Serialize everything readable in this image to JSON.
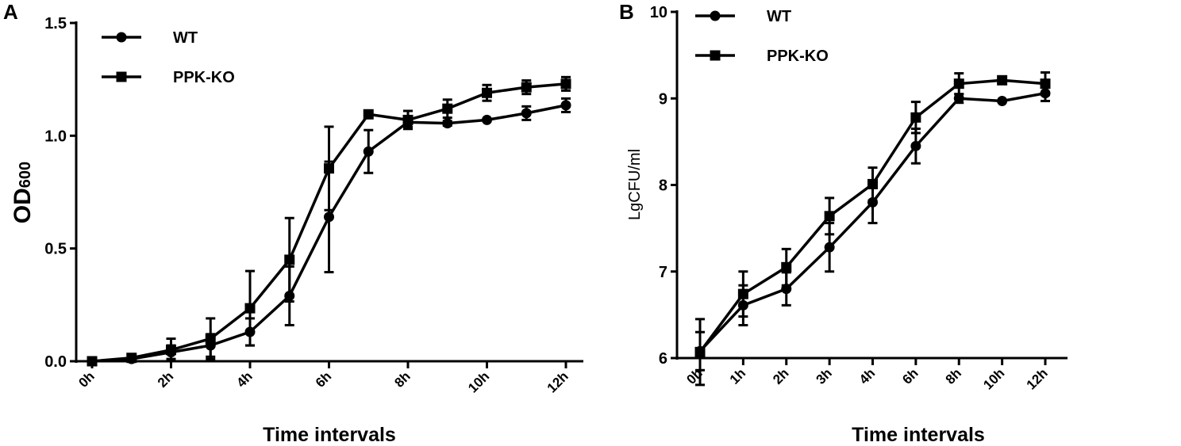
{
  "chart_data": [
    {
      "type": "line",
      "panel_label": "A",
      "title": "",
      "xlabel": "Time intervals",
      "ylabel": "OD",
      "ylabel_sub": "600",
      "ylim": [
        0,
        1.5
      ],
      "yticks": [
        "0.0",
        "0.5",
        "1.0",
        "1.5"
      ],
      "ytick_values": [
        0,
        0.5,
        1.0,
        1.5
      ],
      "x": [
        0,
        1,
        2,
        3,
        4,
        5,
        6,
        7,
        8,
        9,
        10,
        11,
        12
      ],
      "xticks": [
        "0h",
        "2h",
        "4h",
        "6h",
        "8h",
        "10h",
        "12h"
      ],
      "xtick_values": [
        0,
        2,
        4,
        6,
        8,
        10,
        12
      ],
      "legend_position": "top-left",
      "series": [
        {
          "name": "WT",
          "marker": "circle",
          "values": [
            0,
            0.01,
            0.04,
            0.07,
            0.13,
            0.29,
            0.64,
            0.93,
            1.06,
            1.055,
            1.07,
            1.1,
            1.135
          ],
          "errors": [
            0,
            0.005,
            0.03,
            0.05,
            0.06,
            0.13,
            0.245,
            0.095,
            0.02,
            0.01,
            0,
            0.03,
            0.03
          ]
        },
        {
          "name": "PPK-KO",
          "marker": "square",
          "values": [
            0,
            0.015,
            0.05,
            0.1,
            0.235,
            0.45,
            0.855,
            1.095,
            1.07,
            1.12,
            1.19,
            1.215,
            1.23
          ],
          "errors": [
            0,
            0.005,
            0.05,
            0.09,
            0.165,
            0.185,
            0.185,
            0,
            0.04,
            0.04,
            0.035,
            0.03,
            0.03
          ]
        }
      ]
    },
    {
      "type": "line",
      "panel_label": "B",
      "title": "",
      "xlabel": "Time intervals",
      "ylabel": "LgCFU/ml",
      "ylim": [
        6,
        10
      ],
      "yticks": [
        "6",
        "7",
        "8",
        "9",
        "10"
      ],
      "ytick_values": [
        6,
        7,
        8,
        9,
        10
      ],
      "categories": [
        "0h",
        "1h",
        "2h",
        "3h",
        "4h",
        "6h",
        "8h",
        "10h",
        "12h"
      ],
      "legend_position": "top-left",
      "series": [
        {
          "name": "WT",
          "marker": "circle",
          "values": [
            6.08,
            6.61,
            6.8,
            7.28,
            7.8,
            8.45,
            9.0,
            8.97,
            9.06
          ],
          "errors": [
            0.22,
            0.23,
            0.19,
            0.28,
            0.24,
            0.2,
            0.05,
            0,
            0.09
          ]
        },
        {
          "name": "PPK-KO",
          "marker": "square",
          "values": [
            6.07,
            6.74,
            7.05,
            7.64,
            8.01,
            8.78,
            9.17,
            9.21,
            9.17
          ],
          "errors": [
            0.38,
            0.26,
            0.21,
            0.21,
            0.19,
            0.18,
            0.12,
            0,
            0.13
          ]
        }
      ]
    }
  ]
}
